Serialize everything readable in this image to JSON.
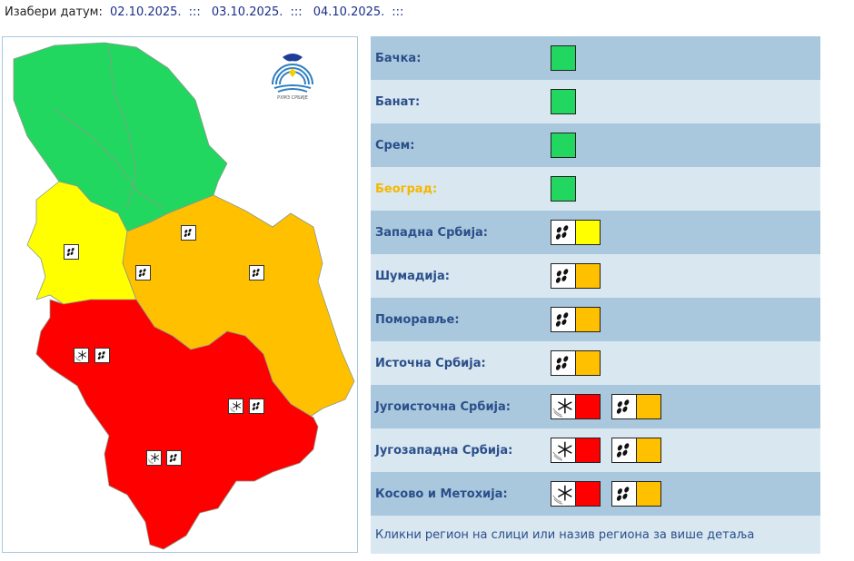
{
  "date_bar": {
    "label": "Изабери датум:",
    "dates": [
      "02.10.2025.",
      "03.10.2025.",
      "04.10.2025."
    ],
    "separator": ":::"
  },
  "logo": {
    "text": "РХМЗ СРБИЈЕ"
  },
  "colors": {
    "green": "#22d760",
    "yellow": "#ffff00",
    "orange": "#ffc000",
    "red": "#ff0000",
    "row_dark": "#a9c8de",
    "row_light": "#d9e7f1",
    "label": "#2a4f8a",
    "highlight": "#f5b800"
  },
  "regions": [
    {
      "name": "Бачка:",
      "warnings": [
        {
          "icon": "",
          "color": "#22d760"
        }
      ]
    },
    {
      "name": "Банат:",
      "warnings": [
        {
          "icon": "",
          "color": "#22d760"
        }
      ]
    },
    {
      "name": "Срем:",
      "warnings": [
        {
          "icon": "",
          "color": "#22d760"
        }
      ]
    },
    {
      "name": "Београд:",
      "highlight": true,
      "warnings": [
        {
          "icon": "",
          "color": "#22d760"
        }
      ]
    },
    {
      "name": "Западна Србија:",
      "warnings": [
        {
          "icon": "rain-icon",
          "color": "#ffff00"
        }
      ]
    },
    {
      "name": "Шумадија:",
      "warnings": [
        {
          "icon": "rain-icon",
          "color": "#ffc000"
        }
      ]
    },
    {
      "name": "Поморавље:",
      "warnings": [
        {
          "icon": "rain-icon",
          "color": "#ffc000"
        }
      ]
    },
    {
      "name": "Источна Србија:",
      "warnings": [
        {
          "icon": "rain-icon",
          "color": "#ffc000"
        }
      ]
    },
    {
      "name": "Југоисточна Србија:",
      "warnings": [
        {
          "icon": "snow-icon",
          "color": "#ff0000"
        },
        {
          "icon": "rain-icon",
          "color": "#ffc000"
        }
      ]
    },
    {
      "name": "Југозападна Србија:",
      "warnings": [
        {
          "icon": "snow-icon",
          "color": "#ff0000"
        },
        {
          "icon": "rain-icon",
          "color": "#ffc000"
        }
      ]
    },
    {
      "name": "Косово и Метохија:",
      "warnings": [
        {
          "icon": "snow-icon",
          "color": "#ff0000"
        },
        {
          "icon": "rain-icon",
          "color": "#ffc000"
        }
      ]
    }
  ],
  "footer": "Кликни регион на слици или назив региона за више детаља"
}
